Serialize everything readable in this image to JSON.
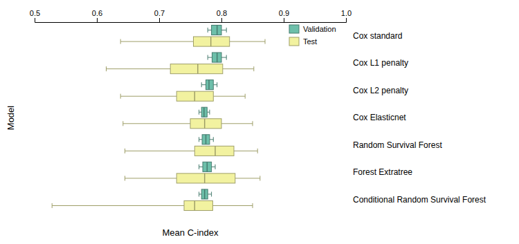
{
  "chart_data": {
    "type": "box",
    "orientation": "horizontal",
    "xlabel": "Mean C-index",
    "ylabel": "Model",
    "categories": [
      "Cox standard",
      "Cox L1 penalty",
      "Cox L2 penalty",
      "Cox Elasticnet",
      "Random Survival Forest",
      "Forest Extratree",
      "Conditional Random Survival Forest"
    ],
    "series": [
      {
        "name": "Validation",
        "color": "#6dbfaa",
        "whislo": [
          0.778,
          0.778,
          0.768,
          0.764,
          0.764,
          0.764,
          0.764
        ],
        "q1": [
          0.784,
          0.785,
          0.775,
          0.768,
          0.769,
          0.77,
          0.768
        ],
        "med": [
          0.793,
          0.793,
          0.78,
          0.772,
          0.775,
          0.777,
          0.773
        ],
        "q3": [
          0.8,
          0.8,
          0.787,
          0.777,
          0.781,
          0.784,
          0.778
        ],
        "whishi": [
          0.808,
          0.808,
          0.793,
          0.781,
          0.787,
          0.79,
          0.784
        ]
      },
      {
        "name": "Test",
        "color": "#f2f2a0",
        "whislo": [
          0.638,
          0.615,
          0.638,
          0.642,
          0.645,
          0.645,
          0.528
        ],
        "q1": [
          0.755,
          0.718,
          0.728,
          0.75,
          0.757,
          0.728,
          0.74
        ],
        "med": [
          0.783,
          0.762,
          0.757,
          0.773,
          0.79,
          0.773,
          0.757
        ],
        "q3": [
          0.813,
          0.802,
          0.787,
          0.8,
          0.82,
          0.822,
          0.786
        ],
        "whishi": [
          0.87,
          0.852,
          0.838,
          0.85,
          0.858,
          0.862,
          0.85
        ]
      }
    ],
    "xlim": [
      0.5,
      1.0
    ],
    "xticks": [
      0.5,
      0.6,
      0.7,
      0.8,
      0.9,
      {
        "value": 1.0,
        "label": "1.0"
      }
    ],
    "legend": "upper right",
    "grid": false
  }
}
